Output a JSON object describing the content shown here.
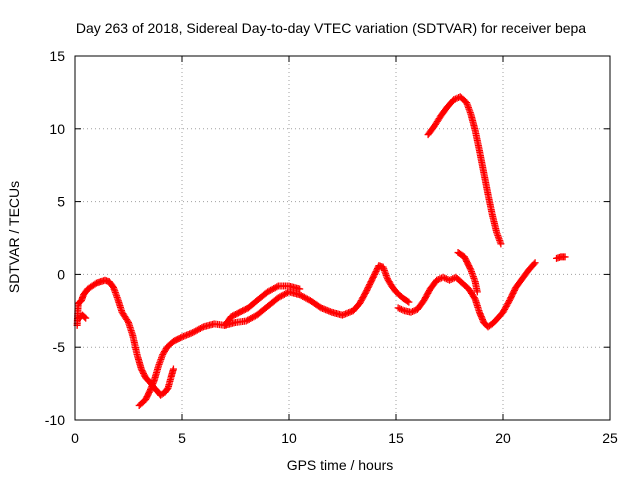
{
  "chart_data": {
    "type": "scatter",
    "title": "Day 263 of 2018, Sidereal Day-to-day VTEC variation (SDTVAR) for receiver bepa",
    "xlabel": "GPS time / hours",
    "ylabel": "SDTVAR / TECUs",
    "xlim": [
      0,
      25
    ],
    "ylim": [
      -10,
      15
    ],
    "xticks": [
      "0",
      "5",
      "10",
      "15",
      "20",
      "25"
    ],
    "yticks": [
      "-10",
      "-5",
      "0",
      "5",
      "10",
      "15"
    ],
    "grid": true,
    "marker": "plus",
    "colors": {
      "series": "#ff0000",
      "axis": "#000000",
      "grid": "#a0a0a0"
    },
    "series": [
      {
        "name": "segment-a",
        "points": [
          [
            0.1,
            -3.5
          ],
          [
            0.15,
            -2.0
          ],
          [
            0.3,
            -1.8
          ],
          [
            0.4,
            -1.4
          ],
          [
            0.6,
            -1.0
          ],
          [
            0.8,
            -0.8
          ],
          [
            1.0,
            -0.6
          ],
          [
            1.2,
            -0.5
          ],
          [
            1.4,
            -0.4
          ],
          [
            1.6,
            -0.5
          ],
          [
            1.8,
            -0.9
          ],
          [
            2.0,
            -1.7
          ],
          [
            2.2,
            -2.6
          ],
          [
            2.5,
            -3.3
          ],
          [
            2.7,
            -4.2
          ],
          [
            2.9,
            -5.5
          ],
          [
            3.1,
            -6.5
          ],
          [
            3.3,
            -7.1
          ],
          [
            3.5,
            -7.4
          ],
          [
            3.7,
            -7.8
          ],
          [
            3.9,
            -8.1
          ],
          [
            4.0,
            -8.3
          ],
          [
            4.2,
            -8.1
          ],
          [
            4.35,
            -7.8
          ],
          [
            4.5,
            -7.0
          ],
          [
            4.6,
            -6.5
          ]
        ]
      },
      {
        "name": "segment-a-low",
        "points": [
          [
            0.2,
            -3.0
          ],
          [
            0.35,
            -2.8
          ],
          [
            0.5,
            -3.0
          ]
        ]
      },
      {
        "name": "segment-b",
        "points": [
          [
            3.0,
            -9.0
          ],
          [
            3.3,
            -8.6
          ],
          [
            3.5,
            -8.0
          ],
          [
            3.7,
            -7.3
          ],
          [
            3.9,
            -6.3
          ],
          [
            4.1,
            -5.5
          ],
          [
            4.3,
            -5.0
          ],
          [
            4.6,
            -4.6
          ],
          [
            5.0,
            -4.3
          ],
          [
            5.5,
            -4.0
          ],
          [
            6.0,
            -3.6
          ],
          [
            6.5,
            -3.4
          ],
          [
            7.0,
            -3.5
          ],
          [
            7.5,
            -3.3
          ],
          [
            8.0,
            -3.2
          ],
          [
            8.5,
            -2.8
          ],
          [
            9.0,
            -2.2
          ],
          [
            9.5,
            -1.6
          ],
          [
            10.0,
            -1.2
          ],
          [
            10.5,
            -1.4
          ],
          [
            11.0,
            -1.8
          ],
          [
            11.5,
            -2.3
          ],
          [
            12.0,
            -2.6
          ],
          [
            12.5,
            -2.8
          ],
          [
            13.0,
            -2.5
          ],
          [
            13.3,
            -2.0
          ],
          [
            13.6,
            -1.2
          ],
          [
            13.9,
            -0.3
          ],
          [
            14.2,
            0.6
          ],
          [
            14.4,
            0.5
          ],
          [
            14.6,
            -0.3
          ],
          [
            14.8,
            -0.8
          ],
          [
            15.0,
            -1.2
          ],
          [
            15.3,
            -1.6
          ],
          [
            15.6,
            -1.9
          ]
        ]
      },
      {
        "name": "segment-c",
        "points": [
          [
            7.0,
            -3.5
          ],
          [
            7.3,
            -2.9
          ],
          [
            7.7,
            -2.6
          ],
          [
            8.1,
            -2.3
          ],
          [
            8.5,
            -1.8
          ],
          [
            9.0,
            -1.2
          ],
          [
            9.5,
            -0.8
          ],
          [
            10.0,
            -0.8
          ],
          [
            10.5,
            -1.0
          ]
        ]
      },
      {
        "name": "segment-d",
        "points": [
          [
            15.1,
            -2.3
          ],
          [
            15.4,
            -2.5
          ],
          [
            15.7,
            -2.6
          ],
          [
            16.0,
            -2.4
          ],
          [
            16.3,
            -1.8
          ],
          [
            16.6,
            -1.0
          ],
          [
            16.9,
            -0.4
          ],
          [
            17.2,
            -0.2
          ],
          [
            17.5,
            -0.4
          ],
          [
            17.8,
            -0.2
          ],
          [
            18.1,
            -0.6
          ],
          [
            18.4,
            -1.0
          ],
          [
            18.7,
            -1.7
          ],
          [
            18.9,
            -2.6
          ],
          [
            19.1,
            -3.3
          ],
          [
            19.3,
            -3.6
          ],
          [
            19.5,
            -3.4
          ],
          [
            19.7,
            -3.1
          ],
          [
            20.0,
            -2.6
          ],
          [
            20.3,
            -1.8
          ],
          [
            20.6,
            -0.9
          ],
          [
            20.9,
            -0.3
          ],
          [
            21.2,
            0.3
          ],
          [
            21.5,
            0.8
          ]
        ]
      },
      {
        "name": "segment-e",
        "points": [
          [
            16.5,
            9.6
          ],
          [
            16.8,
            10.2
          ],
          [
            17.1,
            10.9
          ],
          [
            17.4,
            11.5
          ],
          [
            17.7,
            12.0
          ],
          [
            18.0,
            12.2
          ],
          [
            18.3,
            11.8
          ],
          [
            18.5,
            11.0
          ],
          [
            18.7,
            9.9
          ],
          [
            18.9,
            8.5
          ],
          [
            19.1,
            7.0
          ],
          [
            19.3,
            5.5
          ],
          [
            19.5,
            4.1
          ],
          [
            19.7,
            2.9
          ],
          [
            19.9,
            2.1
          ]
        ]
      },
      {
        "name": "segment-f",
        "points": [
          [
            17.9,
            1.5
          ],
          [
            18.2,
            1.2
          ],
          [
            18.5,
            0.3
          ],
          [
            18.7,
            -0.5
          ],
          [
            18.8,
            -1.2
          ]
        ]
      },
      {
        "name": "segment-g",
        "points": [
          [
            22.5,
            1.1
          ],
          [
            22.7,
            1.2
          ],
          [
            22.9,
            1.2
          ]
        ]
      }
    ]
  }
}
